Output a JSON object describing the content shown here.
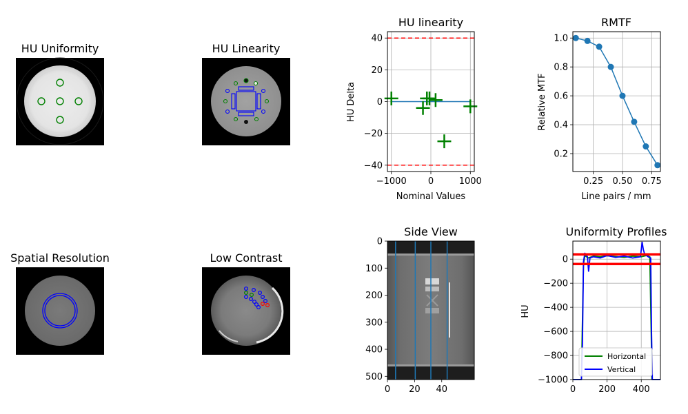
{
  "panels": {
    "uniformity": {
      "title": "HU Uniformity"
    },
    "linearity": {
      "title": "HU Linearity"
    },
    "spatial": {
      "title": "Spatial Resolution"
    },
    "lowcontrast": {
      "title": "Low Contrast"
    }
  },
  "chart_data": [
    {
      "type": "scatter",
      "title": "HU linearity",
      "xlabel": "Nominal Values",
      "ylabel": "HU Delta",
      "xlim": [
        -1100,
        1100
      ],
      "ylim": [
        -44,
        44
      ],
      "xticks": [
        -1000,
        0,
        1000
      ],
      "yticks": [
        -40,
        -20,
        0,
        20,
        40
      ],
      "xticklabels": [
        "−1000",
        "0",
        "1000"
      ],
      "yticklabels": [
        "−40",
        "−20",
        "0",
        "20",
        "40"
      ],
      "grid": true,
      "tolerance_lines": [
        -40,
        40
      ],
      "series": [
        {
          "marker": "plus",
          "color": "#008000",
          "x": [
            -1000,
            -200,
            -100,
            -35,
            120,
            340,
            1000
          ],
          "y": [
            2,
            -4,
            2,
            2,
            1,
            -25,
            -3
          ]
        },
        {
          "marker": "line",
          "color": "#1f77b4",
          "x": [
            -1000,
            1000
          ],
          "y": [
            0,
            0
          ]
        }
      ],
      "colors": {
        "points": "#008000",
        "zero_line": "#1f77b4",
        "tolerance": "#ff0000"
      }
    },
    {
      "type": "line",
      "title": "RMTF",
      "xlabel": "Line pairs / mm",
      "ylabel": "Relative MTF",
      "xlim": [
        0.075,
        0.825
      ],
      "ylim": [
        0.076,
        1.044
      ],
      "xticks": [
        0.25,
        0.5,
        0.75
      ],
      "yticks": [
        0.2,
        0.4,
        0.6,
        0.8,
        1.0
      ],
      "xticklabels": [
        "0.25",
        "0.50",
        "0.75"
      ],
      "yticklabels": [
        "0.2",
        "0.4",
        "0.6",
        "0.8",
        "1.0"
      ],
      "grid": true,
      "series": [
        {
          "color": "#1f77b4",
          "x": [
            0.1,
            0.2,
            0.3,
            0.4,
            0.5,
            0.6,
            0.7,
            0.8
          ],
          "y": [
            1.0,
            0.98,
            0.94,
            0.8,
            0.6,
            0.42,
            0.25,
            0.12
          ]
        }
      ]
    },
    {
      "type": "heatmap",
      "title": "Side View",
      "xlim": [
        0,
        64
      ],
      "ylim": [
        512,
        0
      ],
      "xticks": [
        0,
        20,
        40
      ],
      "yticks": [
        0,
        100,
        200,
        300,
        400,
        500
      ],
      "xticklabels": [
        "0",
        "20",
        "40"
      ],
      "yticklabels": [
        "0",
        "100",
        "200",
        "300",
        "400",
        "500"
      ],
      "grid": false,
      "slice_lines_x": [
        6,
        20.5,
        32,
        44
      ],
      "colors": {
        "slice_lines": "#1f77b4"
      }
    },
    {
      "type": "line",
      "title": "Uniformity Profiles",
      "xlabel": "",
      "ylabel": "HU",
      "xlim": [
        0,
        512
      ],
      "ylim": [
        -1000,
        150
      ],
      "xticks": [
        0,
        200,
        400
      ],
      "yticks": [
        -1000,
        -800,
        -600,
        -400,
        -200,
        0
      ],
      "xticklabels": [
        "0",
        "200",
        "400"
      ],
      "yticklabels": [
        "−1000",
        "−800",
        "−600",
        "−400",
        "−200",
        "0"
      ],
      "grid": true,
      "tolerance_lines": [
        -40,
        40
      ],
      "legend_position": "lower-left",
      "series": [
        {
          "name": "Horizontal",
          "color": "#008000",
          "x": [
            0,
            50,
            55,
            62,
            70,
            90,
            120,
            160,
            200,
            250,
            300,
            350,
            400,
            430,
            450,
            458,
            462,
            512
          ],
          "y": [
            -1000,
            -1000,
            -600,
            -40,
            30,
            10,
            25,
            20,
            28,
            22,
            15,
            25,
            20,
            30,
            20,
            -600,
            -1000,
            -1000
          ]
        },
        {
          "name": "Vertical",
          "color": "#0000ff",
          "x": [
            0,
            50,
            56,
            62,
            70,
            85,
            92,
            100,
            120,
            160,
            200,
            250,
            300,
            350,
            395,
            405,
            412,
            420,
            440,
            455,
            460,
            465,
            512
          ],
          "y": [
            -1000,
            -1000,
            -700,
            -20,
            50,
            20,
            -100,
            10,
            20,
            10,
            30,
            15,
            25,
            10,
            20,
            140,
            80,
            40,
            20,
            10,
            -600,
            -1000,
            -1000
          ]
        }
      ],
      "colors": {
        "tolerance": "#ff0000"
      }
    }
  ]
}
